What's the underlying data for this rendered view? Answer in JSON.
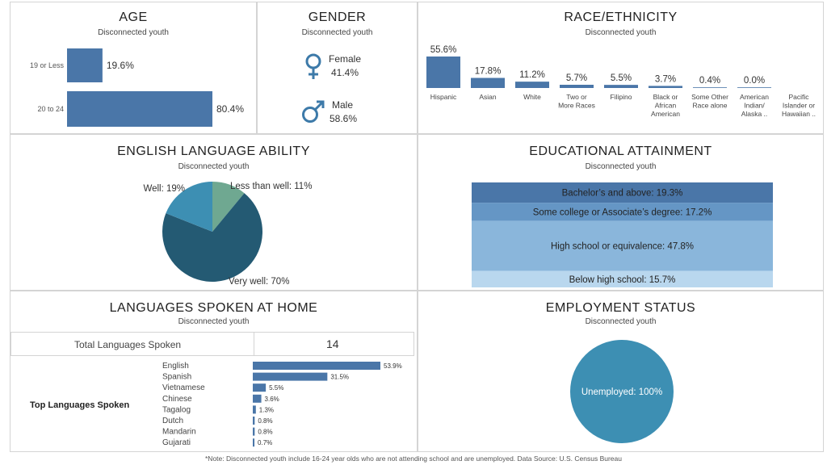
{
  "age": {
    "title": "AGE",
    "subtitle": "Disconnected youth",
    "chart_data": {
      "type": "bar",
      "categories": [
        "19 or Less",
        "20 to 24"
      ],
      "values": [
        19.6,
        80.4
      ],
      "value_labels": [
        "19.6%",
        "80.4%"
      ],
      "orientation": "horizontal"
    }
  },
  "gender": {
    "title": "GENDER",
    "subtitle": "Disconnected youth",
    "female_label": "Female",
    "female_value": "41.4%",
    "male_label": "Male",
    "male_value": "58.6%",
    "female_icon": "female-symbol-icon",
    "male_icon": "male-symbol-icon"
  },
  "race": {
    "title": "RACE/ETHNICITY",
    "subtitle": "Disconnected youth",
    "chart_data": {
      "type": "bar",
      "categories": [
        "Hispanic",
        "Asian",
        "White",
        "Two or More Races",
        "Filipino",
        "Black or African American",
        "Some Other Race alone",
        "American Indian/ Alaska ..",
        "Pacific Islander or Hawaiian .."
      ],
      "values": [
        55.6,
        17.8,
        11.2,
        5.7,
        5.5,
        3.7,
        0.4,
        0.0,
        null
      ],
      "value_labels": [
        "55.6%",
        "17.8%",
        "11.2%",
        "5.7%",
        "5.5%",
        "3.7%",
        "0.4%",
        "0.0%",
        ""
      ]
    }
  },
  "english": {
    "title": "ENGLISH LANGUAGE ABILITY",
    "subtitle": "Disconnected youth",
    "chart_data": {
      "type": "pie",
      "slices": [
        {
          "name": "Less than well",
          "value": 11,
          "label": "Less than well: 11%",
          "color": "#6fa891"
        },
        {
          "name": "Very well",
          "value": 70,
          "label": "Very well: 70%",
          "color": "#245a73"
        },
        {
          "name": "Well",
          "value": 19,
          "label": "Well: 19%",
          "color": "#3d8fb3"
        }
      ]
    }
  },
  "education": {
    "title": "EDUCATIONAL ATTAINMENT",
    "subtitle": "Disconnected youth",
    "chart_data": {
      "type": "bar",
      "stacked": true,
      "segments": [
        {
          "name": "Bachelor's and above",
          "value": 19.3,
          "label": "Bachelor’s and above: 19.3%",
          "color": "#4a76a8"
        },
        {
          "name": "Some college or Associate's degree",
          "value": 17.2,
          "label": "Some college or Associate’s degree: 17.2%",
          "color": "#6596c5"
        },
        {
          "name": "High school or equivalence",
          "value": 47.8,
          "label": "High school or equivalence: 47.8%",
          "color": "#8ab6db"
        },
        {
          "name": "Below high school",
          "value": 15.7,
          "label": "Below high school: 15.7%",
          "color": "#b9d7ee"
        }
      ]
    }
  },
  "languages": {
    "title": "LANGUAGES SPOKEN AT HOME",
    "subtitle": "Disconnected youth",
    "total_label": "Total Languages Spoken",
    "total_value": "14",
    "top_label": "Top Languages Spoken",
    "chart_data": {
      "type": "bar",
      "orientation": "horizontal",
      "categories": [
        "English",
        "Spanish",
        "Vietnamese",
        "Chinese",
        "Tagalog",
        "Dutch",
        "Mandarin",
        "Gujarati"
      ],
      "values": [
        53.9,
        31.5,
        5.5,
        3.6,
        1.3,
        0.8,
        0.8,
        0.7
      ],
      "value_labels": [
        "53.9%",
        "31.5%",
        "5.5%",
        "3.6%",
        "1.3%",
        "0.8%",
        "0.8%",
        "0.7%"
      ]
    }
  },
  "employment": {
    "title": "EMPLOYMENT STATUS",
    "subtitle": "Disconnected youth",
    "chart_data": {
      "type": "pie",
      "slices": [
        {
          "name": "Unemployed",
          "value": 100,
          "label": "Unemployed: 100%",
          "color": "#3d8fb3"
        }
      ]
    }
  },
  "footnote": "*Note: Disconnected youth include 16-24 year olds who are not attending school and are unemployed. Data Source: U.S. Census Bureau",
  "colors": {
    "bar": "#4a76a8",
    "teal_dark": "#245a73",
    "teal_mid": "#3d8fb3",
    "green": "#6fa891"
  }
}
